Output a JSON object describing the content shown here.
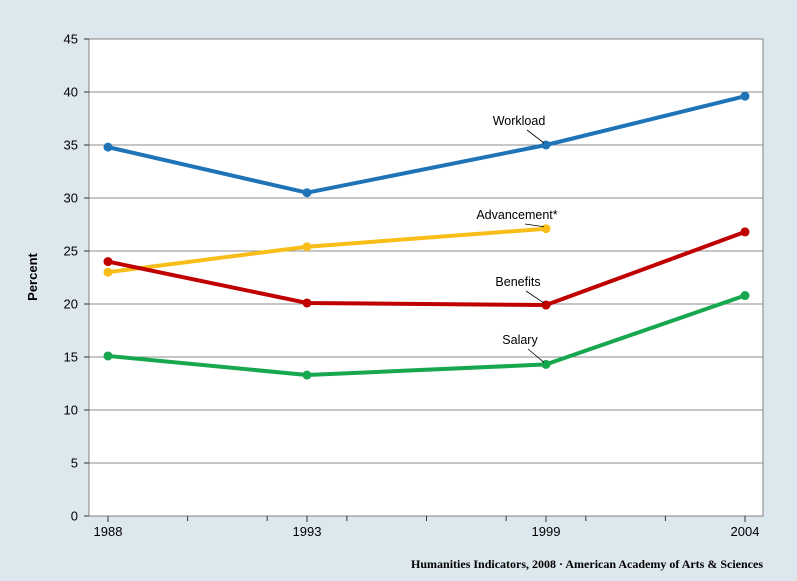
{
  "chart_data": {
    "type": "line",
    "x": [
      1988,
      1993,
      1999,
      2004
    ],
    "categories": [
      "1988",
      "1993",
      "1999",
      "2004"
    ],
    "ylabel": "Percent",
    "xlabel": "",
    "ylim": [
      0,
      45
    ],
    "yticks": [
      0,
      5,
      10,
      15,
      20,
      25,
      30,
      35,
      40,
      45
    ],
    "grid": true,
    "legend": "none",
    "series": [
      {
        "name": "Workload",
        "color": "#1f74b8",
        "values": [
          34.8,
          30.5,
          35.0,
          39.6
        ]
      },
      {
        "name": "Advancement*",
        "color": "#f8bd19",
        "values": [
          23.0,
          25.4,
          27.1,
          null
        ]
      },
      {
        "name": "Benefits",
        "color": "#c00000",
        "values": [
          24.0,
          20.1,
          19.9,
          26.8
        ]
      },
      {
        "name": "Salary",
        "color": "#17a74e",
        "values": [
          15.1,
          13.3,
          14.3,
          20.8
        ]
      }
    ],
    "credit": "Humanities Indicators, 2008 · American Academy of Arts & Sciences"
  }
}
